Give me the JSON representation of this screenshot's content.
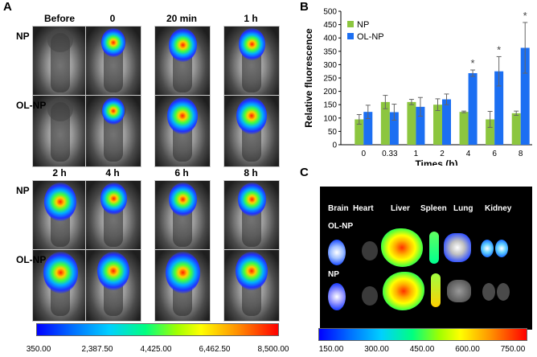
{
  "panels": {
    "a": "A",
    "b": "B",
    "c": "C"
  },
  "imaging": {
    "top_columns": [
      "Before",
      "0",
      "20 min",
      "1 h"
    ],
    "bottom_columns": [
      "2 h",
      "4 h",
      "6 h",
      "8 h"
    ],
    "rows": [
      "NP",
      "OL-NP"
    ],
    "colorbar_ticks": [
      "350.00",
      "2,387.50",
      "4,425.00",
      "6,462.50",
      "8,500.00"
    ]
  },
  "organs": {
    "labels": [
      "Brain",
      "Heart",
      "Liver",
      "Spleen",
      "Lung",
      "Kidney"
    ],
    "rows": [
      "OL-NP",
      "NP"
    ],
    "colorbar_ticks": [
      "150.00",
      "300.00",
      "450.00",
      "600.00",
      "750.00"
    ]
  },
  "chart_data": {
    "type": "bar",
    "categories": [
      "0",
      "0.33",
      "1",
      "2",
      "4",
      "6",
      "8"
    ],
    "series": [
      {
        "name": "NP",
        "color": "#8cc63f",
        "values": [
          95,
          160,
          160,
          150,
          123,
          95,
          118
        ],
        "errors": [
          18,
          25,
          10,
          22,
          3,
          30,
          8
        ]
      },
      {
        "name": "OL-NP",
        "color": "#1c6ff2",
        "values": [
          123,
          122,
          142,
          170,
          268,
          275,
          363
        ],
        "errors": [
          25,
          30,
          35,
          20,
          12,
          55,
          95
        ]
      }
    ],
    "significance": [
      "",
      "",
      "",
      "",
      "*",
      "*",
      "*"
    ],
    "xlabel": "Times (h)",
    "ylabel": "Relative fluorescence",
    "ylim": [
      0,
      500
    ],
    "yticks": [
      0,
      50,
      100,
      150,
      200,
      250,
      300,
      350,
      400,
      450,
      500
    ],
    "legend_position": "top-left",
    "grid": false
  }
}
